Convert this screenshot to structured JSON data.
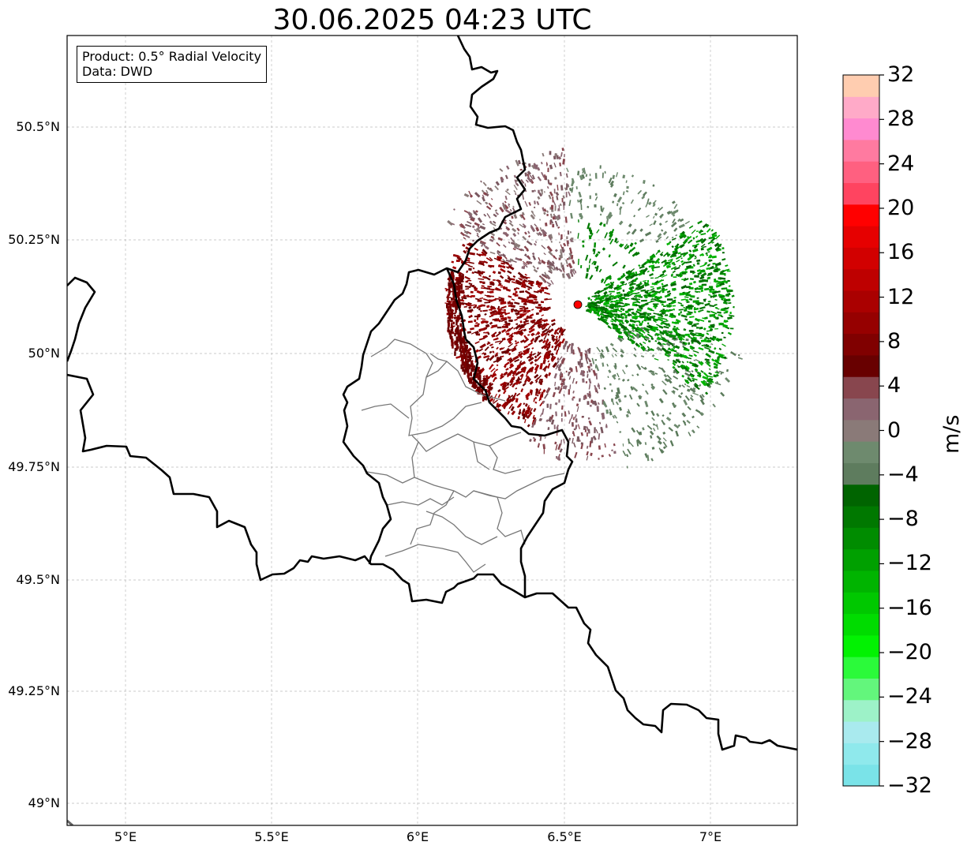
{
  "title": "30.06.2025 04:23 UTC",
  "info_box": {
    "product": "Product: 0.5° Radial Velocity",
    "data": "Data: DWD"
  },
  "map": {
    "lon_range": [
      4.8,
      7.3
    ],
    "lat_range": [
      48.95,
      50.7
    ],
    "grid": true,
    "x_ticks": [
      "5°E",
      "5.5°E",
      "6°E",
      "6.5°E",
      "7°E"
    ],
    "y_ticks": [
      "50.5°N",
      "50.25°N",
      "50°N",
      "49.75°N",
      "49.5°N",
      "49.25°N",
      "49°N"
    ],
    "radar_site": {
      "lon": 6.548,
      "lat": 50.11,
      "color": "#ff0000"
    }
  },
  "colorbar": {
    "unit": "m/s",
    "range": [
      -32,
      32
    ],
    "ticks": [
      "32",
      "28",
      "24",
      "20",
      "16",
      "12",
      "8",
      "4",
      "0",
      "−4",
      "−8",
      "−12",
      "−16",
      "−20",
      "−24",
      "−28",
      "−32"
    ],
    "colors_bottom_to_top": [
      "#7ae3e8",
      "#8fe9ec",
      "#a9eaee",
      "#9df2c8",
      "#63f67c",
      "#2bfa3a",
      "#02f202",
      "#00dc00",
      "#00c800",
      "#00b400",
      "#00a000",
      "#008c00",
      "#007800",
      "#006400",
      "#5e7c5e",
      "#6e8a6e",
      "#8a7a78",
      "#8a6570",
      "#88464e",
      "#680000",
      "#800000",
      "#960000",
      "#aa0000",
      "#be0000",
      "#d20000",
      "#e60000",
      "#ff0000",
      "#ff4460",
      "#ff6080",
      "#ff7aa0",
      "#ff8ad0",
      "#ffaac8",
      "#ffcdb0"
    ]
  }
}
